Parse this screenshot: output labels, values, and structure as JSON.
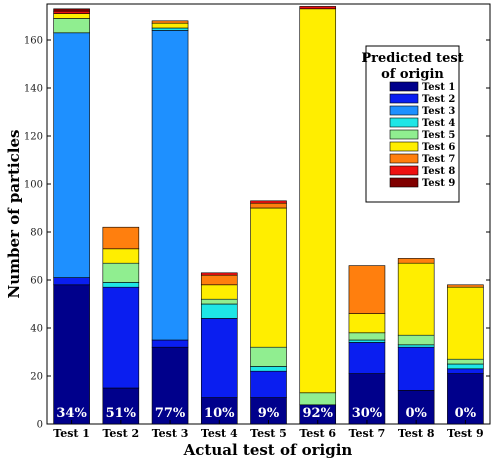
{
  "chart_data": {
    "type": "bar",
    "stacked": true,
    "xlabel": "Actual test of origin",
    "ylabel": "Number of particles",
    "ylim": [
      0,
      175
    ],
    "yticks": [
      0,
      20,
      40,
      60,
      80,
      100,
      120,
      140,
      160
    ],
    "categories": [
      "Test 1",
      "Test 2",
      "Test 3",
      "Test 4",
      "Test 5",
      "Test 6",
      "Test 7",
      "Test 8",
      "Test 9"
    ],
    "percent_labels": [
      "34%",
      "51%",
      "77%",
      "10%",
      "9%",
      "92%",
      "30%",
      "0%",
      "0%"
    ],
    "legend": {
      "title": "Predicted test of origin",
      "position": "top-right"
    },
    "series": [
      {
        "name": "Test 1",
        "color": "#00008b",
        "values": [
          58,
          15,
          32,
          11,
          11,
          8,
          21,
          14,
          21
        ]
      },
      {
        "name": "Test 2",
        "color": "#0a1ef0",
        "values": [
          3,
          42,
          3,
          33,
          11,
          0,
          13,
          18,
          2
        ]
      },
      {
        "name": "Test 3",
        "color": "#1e90ff",
        "values": [
          102,
          0,
          129,
          0,
          0,
          0,
          0,
          0,
          0
        ]
      },
      {
        "name": "Test 4",
        "color": "#1ee6e6",
        "values": [
          0,
          2,
          1,
          6,
          2,
          0,
          1,
          1,
          2
        ]
      },
      {
        "name": "Test 5",
        "color": "#90ee90",
        "values": [
          6,
          8,
          0,
          2,
          8,
          5,
          3,
          4,
          2
        ]
      },
      {
        "name": "Test 6",
        "color": "#ffee00",
        "values": [
          2,
          6,
          2,
          6,
          58,
          160,
          8,
          30,
          30
        ]
      },
      {
        "name": "Test 7",
        "color": "#ff7f0e",
        "values": [
          0,
          9,
          1,
          4,
          2,
          0,
          20,
          2,
          1
        ]
      },
      {
        "name": "Test 8",
        "color": "#ee1111",
        "values": [
          1,
          0,
          0,
          1,
          1,
          1,
          0,
          0,
          0
        ]
      },
      {
        "name": "Test 9",
        "color": "#800000",
        "values": [
          1,
          0,
          0,
          0,
          0,
          0,
          0,
          0,
          0
        ]
      }
    ]
  }
}
